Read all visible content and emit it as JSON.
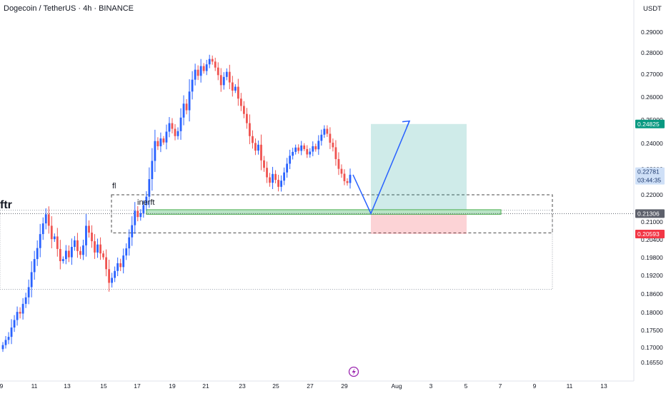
{
  "header": {
    "symbol_title": "Dogecoin / TetherUS · 4h · BINANCE",
    "currency": "USDT"
  },
  "colors": {
    "up": "#26a69a",
    "down": "#ef5350",
    "candle_up_body": "#2962ff",
    "candle_down_body": "#ef5350",
    "target_zone": "#26a69a",
    "stop_zone": "#f23645",
    "path_line": "#2962ff",
    "badge_target": "#089981",
    "badge_current": "#cfe0f7",
    "badge_entry": "#5d606b",
    "badge_stop": "#f23645"
  },
  "chart_data": {
    "type": "candlestick",
    "symbol": "DOGE/USDT",
    "interval": "4h",
    "exchange": "BINANCE",
    "y_axis_ticks": [
      "0.29000",
      "0.28000",
      "0.27000",
      "0.26000",
      "0.25000",
      "0.24000",
      "0.23000",
      "0.22000",
      "0.21000",
      "0.20400",
      "0.19800",
      "0.19200",
      "0.18600",
      "0.18000",
      "0.17500",
      "0.17000",
      "0.16550"
    ],
    "x_axis_ticks": [
      "9",
      "11",
      "13",
      "15",
      "17",
      "19",
      "21",
      "23",
      "25",
      "27",
      "29",
      "Aug",
      "3",
      "5",
      "7",
      "9",
      "11",
      "13"
    ],
    "price_labels": {
      "target": "0.24825",
      "current_price": "0.22781",
      "countdown": "03:44:35",
      "entry": "0.21306",
      "stop": "0.20593"
    },
    "annotations": {
      "left_label": "ftr",
      "zone_label": "fl",
      "inner_label": "inerft"
    },
    "series_close": [
      0.1707,
      0.1722,
      0.1731,
      0.1758,
      0.1779,
      0.1802,
      0.1797,
      0.1828,
      0.1849,
      0.1882,
      0.1931,
      0.1975,
      0.2012,
      0.2059,
      0.2095,
      0.2128,
      0.2087,
      0.2042,
      0.2051,
      0.2009,
      0.1968,
      0.1975,
      0.2003,
      0.1981,
      0.2016,
      0.2038,
      0.2002,
      0.1989,
      0.2021,
      0.2087,
      0.2064,
      0.2035,
      0.1997,
      0.2024,
      0.1994,
      0.1981,
      0.1941,
      0.1896,
      0.1912,
      0.1935,
      0.1961,
      0.1948,
      0.1987,
      0.2011,
      0.2048,
      0.2089,
      0.2141,
      0.2118,
      0.2132,
      0.2162,
      0.2193,
      0.2261,
      0.2332,
      0.241,
      0.2389,
      0.2421,
      0.2404,
      0.245,
      0.2486,
      0.2462,
      0.2431,
      0.2452,
      0.251,
      0.2571,
      0.2542,
      0.2624,
      0.2676,
      0.2721,
      0.2693,
      0.2738,
      0.2715,
      0.2746,
      0.2771,
      0.2759,
      0.2731,
      0.2696,
      0.2652,
      0.2688,
      0.2711,
      0.2664,
      0.2628,
      0.2645,
      0.2593,
      0.2561,
      0.2526,
      0.2486,
      0.2431,
      0.2402,
      0.2372,
      0.2395,
      0.2334,
      0.2305,
      0.2268,
      0.2247,
      0.2281,
      0.2258,
      0.2231,
      0.2255,
      0.2287,
      0.2321,
      0.2352,
      0.2367,
      0.2384,
      0.2371,
      0.2392,
      0.2378,
      0.2357,
      0.2368,
      0.2389,
      0.2377,
      0.2411,
      0.2437,
      0.2462,
      0.2441,
      0.2403,
      0.2385,
      0.2339,
      0.2301,
      0.2282,
      0.2253,
      0.2246,
      0.2278
    ],
    "projection_path": [
      {
        "x_label": "29",
        "price": 0.2278
      },
      {
        "x_label": "Jul 30.5",
        "price": 0.2131
      },
      {
        "x_label": "Aug 1",
        "price": 0.2495
      }
    ],
    "position": {
      "entry": 0.21306,
      "target": 0.24825,
      "stop": 0.20593
    },
    "zones": {
      "demand_box_top": 0.22,
      "demand_box_bottom": 0.2063,
      "outer_box_bottom": 0.1875,
      "green_strip_top": 0.2145,
      "green_strip_bottom": 0.2128
    }
  }
}
